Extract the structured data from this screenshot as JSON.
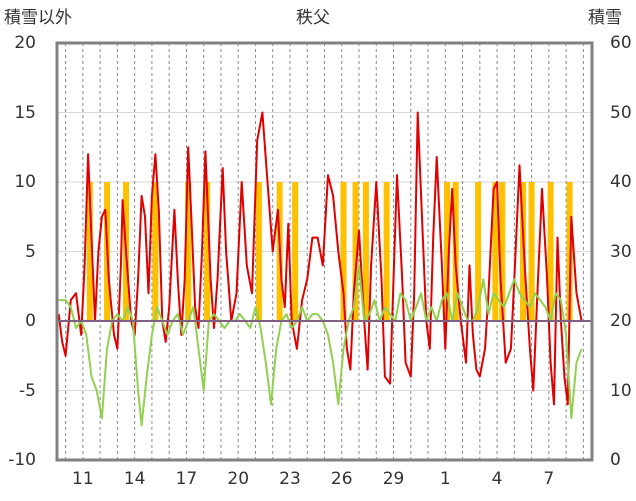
{
  "chart_data": {
    "type": "line",
    "title": "秩父",
    "left_axis_label": "積雪以外",
    "right_axis_label": "積雪",
    "ylim_left": [
      -10,
      20
    ],
    "ylim_right": [
      0,
      60
    ],
    "y_ticks_left": [
      "20",
      "15",
      "10",
      "5",
      "0",
      "-5",
      "-10"
    ],
    "y_ticks_right": [
      "60",
      "50",
      "40",
      "30",
      "20",
      "10",
      "0"
    ],
    "x_tick_labels": [
      "11",
      "14",
      "17",
      "20",
      "23",
      "26",
      "29",
      "1",
      "4",
      "7"
    ],
    "x_tick_days": [
      11,
      14,
      17,
      20,
      23,
      26,
      29,
      32,
      35,
      38
    ],
    "x_range_days": [
      9.5,
      40.5
    ],
    "grid": "vertical dashed daily, horizontal at major ticks",
    "colors": {
      "red": "#e00000",
      "green": "#92d050",
      "orange": "#ffc000",
      "baseline": "#7030a0",
      "frame": "#808080"
    },
    "series": [
      {
        "color": "#e00000",
        "axis": "left",
        "values": [
          [
            9.6,
            0.5
          ],
          [
            9.8,
            -1.5
          ],
          [
            10,
            -2.5
          ],
          [
            10.3,
            1.5
          ],
          [
            10.6,
            2
          ],
          [
            10.9,
            -1
          ],
          [
            11.1,
            4
          ],
          [
            11.3,
            12
          ],
          [
            11.5,
            6
          ],
          [
            11.7,
            0
          ],
          [
            11.9,
            5
          ],
          [
            12.1,
            7.5
          ],
          [
            12.3,
            8
          ],
          [
            12.5,
            3
          ],
          [
            12.8,
            -1
          ],
          [
            13.0,
            -2
          ],
          [
            13.2,
            4
          ],
          [
            13.3,
            8.7
          ],
          [
            13.5,
            5
          ],
          [
            13.8,
            0
          ],
          [
            14.0,
            -1
          ],
          [
            14.2,
            3
          ],
          [
            14.4,
            9
          ],
          [
            14.6,
            7.5
          ],
          [
            14.8,
            2
          ],
          [
            15.0,
            9
          ],
          [
            15.2,
            12
          ],
          [
            15.4,
            8
          ],
          [
            15.6,
            0
          ],
          [
            15.8,
            -1.5
          ],
          [
            16.0,
            1
          ],
          [
            16.3,
            8
          ],
          [
            16.5,
            3
          ],
          [
            16.7,
            -1
          ],
          [
            16.9,
            3
          ],
          [
            17.1,
            12.5
          ],
          [
            17.3,
            7
          ],
          [
            17.5,
            1
          ],
          [
            17.7,
            -0.5
          ],
          [
            17.9,
            5
          ],
          [
            18.1,
            12.2
          ],
          [
            18.4,
            3
          ],
          [
            18.6,
            -0.5
          ],
          [
            18.8,
            3
          ],
          [
            19.1,
            11
          ],
          [
            19.3,
            5
          ],
          [
            19.6,
            0
          ],
          [
            19.9,
            2
          ],
          [
            20.2,
            10
          ],
          [
            20.5,
            4
          ],
          [
            20.8,
            2
          ],
          [
            21.1,
            13
          ],
          [
            21.4,
            15
          ],
          [
            21.7,
            10
          ],
          [
            22.0,
            5
          ],
          [
            22.3,
            8
          ],
          [
            22.5,
            3
          ],
          [
            22.7,
            1
          ],
          [
            22.9,
            7
          ],
          [
            23.1,
            0
          ],
          [
            23.4,
            -2
          ],
          [
            23.7,
            1.5
          ],
          [
            24.0,
            3
          ],
          [
            24.3,
            6
          ],
          [
            24.6,
            6
          ],
          [
            24.9,
            4
          ],
          [
            25.2,
            10.5
          ],
          [
            25.5,
            9
          ],
          [
            25.8,
            5
          ],
          [
            26.1,
            2
          ],
          [
            26.3,
            -2
          ],
          [
            26.5,
            -3.5
          ],
          [
            26.7,
            2
          ],
          [
            27.0,
            6.5
          ],
          [
            27.3,
            0
          ],
          [
            27.5,
            -3.5
          ],
          [
            27.7,
            4
          ],
          [
            28.0,
            10
          ],
          [
            28.3,
            3
          ],
          [
            28.5,
            -4
          ],
          [
            28.8,
            -4.5
          ],
          [
            29.0,
            3
          ],
          [
            29.2,
            10.5
          ],
          [
            29.5,
            3
          ],
          [
            29.7,
            -3
          ],
          [
            30.0,
            -4
          ],
          [
            30.2,
            2
          ],
          [
            30.4,
            15
          ],
          [
            30.6,
            9
          ],
          [
            30.9,
            0
          ],
          [
            31.1,
            -2
          ],
          [
            31.3,
            6
          ],
          [
            31.5,
            11.8
          ],
          [
            31.8,
            4
          ],
          [
            32.0,
            -2
          ],
          [
            32.2,
            5
          ],
          [
            32.4,
            9.5
          ],
          [
            32.6,
            4
          ],
          [
            32.9,
            0
          ],
          [
            33.2,
            -3
          ],
          [
            33.4,
            4
          ],
          [
            33.6,
            -1
          ],
          [
            33.8,
            -3.5
          ],
          [
            34.0,
            -4
          ],
          [
            34.3,
            -2
          ],
          [
            34.5,
            2
          ],
          [
            34.8,
            9.5
          ],
          [
            35.0,
            10
          ],
          [
            35.2,
            3
          ],
          [
            35.5,
            -3
          ],
          [
            35.8,
            -2
          ],
          [
            36.0,
            3
          ],
          [
            36.3,
            11.2
          ],
          [
            36.6,
            4
          ],
          [
            36.9,
            -2
          ],
          [
            37.1,
            -5
          ],
          [
            37.3,
            1
          ],
          [
            37.6,
            9.5
          ],
          [
            37.9,
            3
          ],
          [
            38.1,
            -3
          ],
          [
            38.3,
            -6
          ],
          [
            38.5,
            6
          ],
          [
            38.7,
            0
          ],
          [
            38.9,
            -4
          ],
          [
            39.1,
            -6
          ],
          [
            39.3,
            7.5
          ],
          [
            39.6,
            2
          ],
          [
            39.9,
            0
          ]
        ]
      },
      {
        "color": "#92d050",
        "axis": "left",
        "values": [
          [
            9.6,
            1.5
          ],
          [
            10.0,
            1.5
          ],
          [
            10.3,
            1
          ],
          [
            10.6,
            -0.5
          ],
          [
            10.9,
            0
          ],
          [
            11.2,
            -1
          ],
          [
            11.5,
            -4
          ],
          [
            11.8,
            -5
          ],
          [
            12.1,
            -7
          ],
          [
            12.4,
            -2
          ],
          [
            12.7,
            0
          ],
          [
            13.0,
            0.5
          ],
          [
            13.3,
            0
          ],
          [
            13.6,
            1
          ],
          [
            13.9,
            0
          ],
          [
            14.2,
            -5
          ],
          [
            14.4,
            -7.5
          ],
          [
            14.7,
            -4
          ],
          [
            15.0,
            -1
          ],
          [
            15.3,
            1
          ],
          [
            15.6,
            0
          ],
          [
            15.9,
            -1
          ],
          [
            16.2,
            0
          ],
          [
            16.5,
            0.5
          ],
          [
            16.8,
            -1
          ],
          [
            17.1,
            0
          ],
          [
            17.4,
            1
          ],
          [
            17.7,
            -2
          ],
          [
            18.0,
            -5
          ],
          [
            18.3,
            0
          ],
          [
            18.6,
            0.5
          ],
          [
            18.9,
            0
          ],
          [
            19.2,
            -0.5
          ],
          [
            19.5,
            0
          ],
          [
            19.8,
            0
          ],
          [
            20.1,
            0.5
          ],
          [
            20.4,
            0
          ],
          [
            20.7,
            -0.5
          ],
          [
            21.0,
            1
          ],
          [
            21.3,
            -0.5
          ],
          [
            21.6,
            -3
          ],
          [
            21.9,
            -6
          ],
          [
            22.2,
            -2
          ],
          [
            22.5,
            0
          ],
          [
            22.8,
            0.5
          ],
          [
            23.1,
            -0.5
          ],
          [
            23.4,
            0
          ],
          [
            23.7,
            1
          ],
          [
            24.0,
            0
          ],
          [
            24.3,
            0.5
          ],
          [
            24.6,
            0.5
          ],
          [
            24.9,
            0
          ],
          [
            25.2,
            -1
          ],
          [
            25.5,
            -3
          ],
          [
            25.8,
            -6
          ],
          [
            26.1,
            -2
          ],
          [
            26.4,
            0
          ],
          [
            26.7,
            1
          ],
          [
            27.0,
            4
          ],
          [
            27.3,
            0
          ],
          [
            27.6,
            0.5
          ],
          [
            27.9,
            1.5
          ],
          [
            28.2,
            0
          ],
          [
            28.5,
            1
          ],
          [
            28.8,
            0.5
          ],
          [
            29.1,
            0
          ],
          [
            29.4,
            2
          ],
          [
            29.7,
            1.5
          ],
          [
            30.0,
            0
          ],
          [
            30.3,
            1
          ],
          [
            30.6,
            2
          ],
          [
            30.9,
            0
          ],
          [
            31.2,
            1
          ],
          [
            31.5,
            0
          ],
          [
            31.8,
            1.5
          ],
          [
            32.1,
            2
          ],
          [
            32.4,
            0
          ],
          [
            32.7,
            2
          ],
          [
            33.0,
            1
          ],
          [
            33.3,
            0
          ],
          [
            33.6,
            0
          ],
          [
            33.9,
            1
          ],
          [
            34.2,
            3
          ],
          [
            34.5,
            0.5
          ],
          [
            34.8,
            2
          ],
          [
            35.1,
            1.5
          ],
          [
            35.4,
            1
          ],
          [
            35.7,
            2
          ],
          [
            36.0,
            3
          ],
          [
            36.3,
            2
          ],
          [
            36.6,
            1.5
          ],
          [
            36.9,
            1
          ],
          [
            37.2,
            2
          ],
          [
            37.5,
            1.5
          ],
          [
            37.8,
            1
          ],
          [
            38.1,
            0
          ],
          [
            38.4,
            2
          ],
          [
            38.7,
            1.5
          ],
          [
            39.0,
            -1
          ],
          [
            39.3,
            -7
          ],
          [
            39.6,
            -3
          ],
          [
            39.9,
            -2
          ]
        ]
      },
      {
        "color": "#ffc000",
        "axis": "right",
        "bars": [
          [
            11.4,
            40
          ],
          [
            12.4,
            40
          ],
          [
            13.5,
            40
          ],
          [
            15.2,
            40
          ],
          [
            17.1,
            40
          ],
          [
            18.2,
            40
          ],
          [
            21.2,
            40
          ],
          [
            22.4,
            40
          ],
          [
            23.3,
            40
          ],
          [
            26.1,
            40
          ],
          [
            26.8,
            40
          ],
          [
            27.4,
            40
          ],
          [
            28.6,
            40
          ],
          [
            32.1,
            40
          ],
          [
            32.6,
            40
          ],
          [
            33.9,
            40
          ],
          [
            34.9,
            40
          ],
          [
            35.3,
            40
          ],
          [
            36.5,
            40
          ],
          [
            37.0,
            40
          ],
          [
            38.1,
            40
          ],
          [
            39.2,
            40
          ]
        ]
      }
    ]
  }
}
